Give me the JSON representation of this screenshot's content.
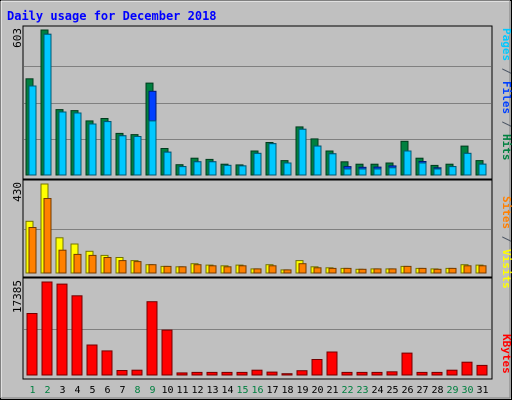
{
  "chart_data": {
    "type": "bar",
    "title": "Daily usage for December 2018",
    "categories": [
      "1",
      "2",
      "3",
      "4",
      "5",
      "6",
      "7",
      "8",
      "9",
      "10",
      "11",
      "12",
      "13",
      "14",
      "15",
      "16",
      "17",
      "18",
      "19",
      "20",
      "21",
      "22",
      "23",
      "24",
      "25",
      "26",
      "27",
      "28",
      "29",
      "30",
      "31"
    ],
    "weekend_days": [
      "1",
      "2",
      "8",
      "9",
      "15",
      "16",
      "22",
      "23",
      "29",
      "30"
    ],
    "axis_labels": {
      "top": "603",
      "middle": "430",
      "bottom": "17385"
    },
    "legends": {
      "top": [
        {
          "text": "Pages",
          "color": "#00c8ff"
        },
        {
          "text": " / ",
          "color": "#4b5563"
        },
        {
          "text": "Files",
          "color": "#0040ff"
        },
        {
          "text": " / ",
          "color": "#4b5563"
        },
        {
          "text": "Hits",
          "color": "#008040"
        }
      ],
      "middle": [
        {
          "text": "Sites",
          "color": "#ff8000"
        },
        {
          "text": " / ",
          "color": "#4b5563"
        },
        {
          "text": "Visits",
          "color": "#ffff00"
        }
      ],
      "bottom": [
        {
          "text": "KBytes",
          "color": "#ff0000"
        }
      ]
    },
    "panels": [
      {
        "id": "hits-files-pages",
        "ylim": [
          0,
          603
        ],
        "series": [
          {
            "name": "Hits",
            "color": "#008040",
            "values": [
              400,
              603,
              272,
              268,
              225,
              235,
              173,
              168,
              382,
              110,
              43,
              70,
              65,
              45,
              42,
              100,
              135,
              60,
              200,
              150,
              100,
              55,
              45,
              45,
              50,
              140,
              70,
              40,
              45,
              120,
              60
            ]
          },
          {
            "name": "Files",
            "color": "#0040ff",
            "values": [
              370,
              585,
              262,
              258,
              212,
              222,
              163,
              160,
              348,
              95,
              35,
              55,
              55,
              40,
              38,
              90,
              130,
              50,
              190,
              120,
              88,
              35,
              32,
              33,
              38,
              100,
              56,
              30,
              35,
              90,
              45
            ]
          },
          {
            "name": "Pages",
            "color": "#00c8ff",
            "values": [
              370,
              585,
              262,
              258,
              212,
              222,
              163,
              160,
              225,
              95,
              35,
              55,
              55,
              40,
              38,
              90,
              130,
              50,
              190,
              120,
              88,
              25,
              25,
              25,
              30,
              100,
              50,
              25,
              35,
              90,
              45
            ]
          }
        ]
      },
      {
        "id": "visits-sites",
        "ylim": [
          0,
          430
        ],
        "series": [
          {
            "name": "Visits",
            "color": "#ffff00",
            "values": [
              250,
              430,
              170,
              140,
              105,
              85,
              75,
              60,
              40,
              32,
              30,
              45,
              38,
              35,
              38,
              20,
              40,
              15,
              60,
              30,
              25,
              22,
              18,
              20,
              20,
              32,
              22,
              20,
              22,
              40,
              38
            ]
          },
          {
            "name": "Sites",
            "color": "#ff8000",
            "values": [
              220,
              360,
              110,
              90,
              85,
              75,
              60,
              55,
              40,
              32,
              30,
              40,
              35,
              30,
              35,
              20,
              35,
              15,
              45,
              25,
              22,
              22,
              18,
              20,
              20,
              32,
              22,
              18,
              22,
              35,
              35
            ]
          }
        ]
      },
      {
        "id": "kbytes",
        "ylim": [
          0,
          17385
        ],
        "series": [
          {
            "name": "KBytes",
            "color": "#ff0000",
            "values": [
              11500,
              17385,
              17000,
              14800,
              5600,
              4500,
              850,
              900,
              13700,
              8400,
              400,
              480,
              480,
              480,
              480,
              900,
              550,
              250,
              800,
              2900,
              4300,
              480,
              480,
              480,
              600,
              4100,
              480,
              480,
              900,
              2400,
              1800
            ]
          }
        ]
      }
    ]
  }
}
